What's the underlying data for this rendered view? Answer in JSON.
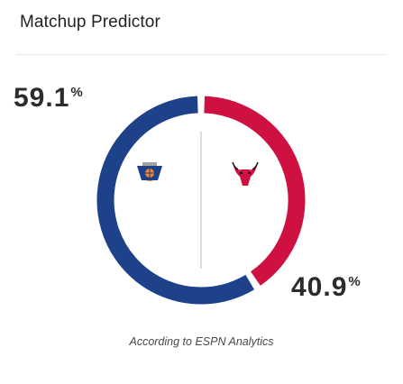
{
  "header": {
    "title": "Matchup Predictor"
  },
  "teams": {
    "left": {
      "percent": "59.1",
      "unit": "%",
      "color": "#1d428a",
      "logo_icon": "knicks-logo-icon"
    },
    "right": {
      "percent": "40.9",
      "unit": "%",
      "color": "#ce1141",
      "logo_icon": "bulls-logo-icon"
    }
  },
  "chart_data": {
    "type": "pie",
    "categories": [
      "Knicks",
      "Bulls"
    ],
    "values": [
      59.1,
      40.9
    ],
    "colors": [
      "#1d428a",
      "#ce1141"
    ],
    "title": "Matchup Predictor"
  },
  "footer": {
    "caption": "According to ESPN Analytics"
  }
}
